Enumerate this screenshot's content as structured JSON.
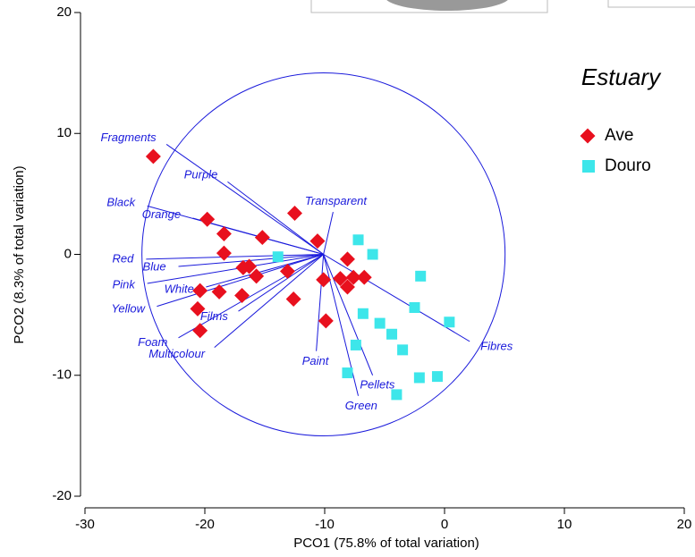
{
  "chart_data": {
    "type": "scatter",
    "x_label": "PCO1 (75.8% of total variation)",
    "y_label": "PCO2 (8.3% of total variation)",
    "xlim": [
      -30,
      20
    ],
    "ylim": [
      -20,
      20
    ],
    "xticks": [
      -30,
      -20,
      -10,
      0,
      10,
      20
    ],
    "yticks": [
      -20,
      -10,
      0,
      10,
      20
    ],
    "legend_title": "Estuary",
    "legend_position": "upper right",
    "series": [
      {
        "name": "Ave",
        "color": "#e8101e",
        "marker": "diamond",
        "x": [
          -24.3,
          -19.8,
          -18.4,
          -18.4,
          -15.2,
          -12.5,
          -10.6,
          -16.8,
          -16.3,
          -15.7,
          -20.4,
          -18.8,
          -16.9,
          -13.1,
          -12.6,
          -20.6,
          -20.4,
          -10.1,
          -9.9,
          -8.1,
          -8.7,
          -8.1,
          -7.6,
          -6.7
        ],
        "y": [
          8.1,
          2.9,
          1.7,
          0.1,
          1.4,
          3.4,
          1.1,
          -1.1,
          -1.0,
          -1.8,
          -3.0,
          -3.1,
          -3.4,
          -1.4,
          -3.7,
          -4.5,
          -6.3,
          -2.1,
          -5.5,
          -0.4,
          -2.0,
          -2.7,
          -1.9,
          -1.9
        ]
      },
      {
        "name": "Douro",
        "color": "#3de6ea",
        "marker": "square",
        "x": [
          -13.9,
          -7.2,
          -6.0,
          -2.0,
          -2.5,
          0.4,
          -6.8,
          -5.4,
          -4.4,
          -3.5,
          -7.4,
          -8.1,
          -2.1,
          -0.6,
          -4.0
        ],
        "y": [
          -0.2,
          1.2,
          0.0,
          -1.8,
          -4.4,
          -5.6,
          -4.9,
          -5.7,
          -6.6,
          -7.9,
          -7.5,
          -9.8,
          -10.2,
          -10.1,
          -11.6
        ]
      }
    ],
    "vector_color": "#1a1adb",
    "vector_origin": [
      -10.1,
      0
    ],
    "vectors": [
      {
        "name": "Fragments",
        "x": -23.2,
        "y": 9.1
      },
      {
        "name": "Purple",
        "x": -18.1,
        "y": 6.0
      },
      {
        "name": "Black",
        "x": -24.8,
        "y": 4.0
      },
      {
        "name": "Orange",
        "x": -21.0,
        "y": 3.0
      },
      {
        "name": "Transparent",
        "x": -9.3,
        "y": 3.5
      },
      {
        "name": "Red",
        "x": -24.9,
        "y": -0.4
      },
      {
        "name": "Blue",
        "x": -22.2,
        "y": -1.0
      },
      {
        "name": "Pink",
        "x": -24.8,
        "y": -2.4
      },
      {
        "name": "White",
        "x": -19.9,
        "y": -2.7
      },
      {
        "name": "Yellow",
        "x": -24.0,
        "y": -4.3
      },
      {
        "name": "Foam",
        "x": -22.2,
        "y": -6.9
      },
      {
        "name": "Films",
        "x": -17.2,
        "y": -4.7
      },
      {
        "name": "Multicolour",
        "x": -19.2,
        "y": -7.7
      },
      {
        "name": "Paint",
        "x": -10.7,
        "y": -8.0
      },
      {
        "name": "Green",
        "x": -7.2,
        "y": -11.7
      },
      {
        "name": "Pellets",
        "x": -6.0,
        "y": -10.0
      },
      {
        "name": "Fibres",
        "x": 2.1,
        "y": -7.2
      }
    ]
  }
}
